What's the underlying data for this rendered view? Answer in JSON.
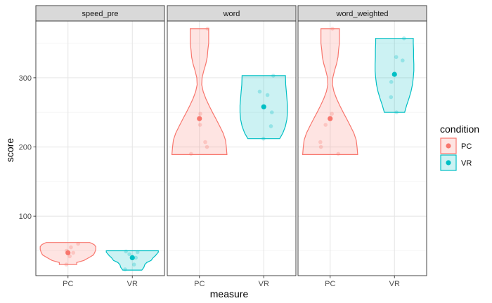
{
  "chart_data": {
    "type": "violin",
    "title": "",
    "xlabel": "measure",
    "ylabel": "score",
    "ylim": [
      14,
      382
    ],
    "yticks": [
      100,
      200,
      300
    ],
    "categories": [
      "PC",
      "VR"
    ],
    "grid": true,
    "legend": {
      "title": "condition",
      "placement": "right",
      "entries": [
        {
          "name": "PC",
          "color": "#F8766D"
        },
        {
          "name": "VR",
          "color": "#00BFC4"
        }
      ]
    },
    "facets": [
      {
        "label": "speed_pre",
        "groups": [
          {
            "condition": "PC",
            "mean": 47,
            "range": [
              30,
              62
            ],
            "profile": [
              [
                30,
                0.3
              ],
              [
                33,
                0.3
              ],
              [
                36,
                0.55
              ],
              [
                40,
                0.72
              ],
              [
                44,
                0.88
              ],
              [
                48,
                0.93
              ],
              [
                52,
                0.96
              ],
              [
                56,
                0.96
              ],
              [
                59,
                0.9
              ],
              [
                62,
                0.75
              ]
            ],
            "points": [
              [
                -0.05,
                50
              ],
              [
                0.1,
                55
              ],
              [
                0.18,
                47
              ],
              [
                0.35,
                60
              ],
              [
                0.06,
                42
              ],
              [
                -0.06,
                30
              ]
            ]
          },
          {
            "condition": "VR",
            "mean": 40,
            "range": [
              22,
              50
            ],
            "profile": [
              [
                22,
                0.33
              ],
              [
                26,
                0.4
              ],
              [
                30,
                0.43
              ],
              [
                33,
                0.5
              ],
              [
                36,
                0.65
              ],
              [
                40,
                0.72
              ],
              [
                43,
                0.8
              ],
              [
                46,
                0.86
              ],
              [
                48,
                0.9
              ],
              [
                50,
                0.9
              ]
            ],
            "points": [
              [
                -0.22,
                49
              ],
              [
                -0.25,
                23
              ],
              [
                -0.1,
                45
              ],
              [
                0.18,
                48
              ],
              [
                0.06,
                30
              ],
              [
                0.12,
                40
              ]
            ]
          }
        ]
      },
      {
        "label": "word",
        "groups": [
          {
            "condition": "PC",
            "mean": 241,
            "range": [
              189,
              371
            ],
            "profile": [
              [
                189,
                0.95
              ],
              [
                200,
                0.93
              ],
              [
                210,
                0.9
              ],
              [
                220,
                0.82
              ],
              [
                230,
                0.7
              ],
              [
                240,
                0.58
              ],
              [
                250,
                0.45
              ],
              [
                260,
                0.33
              ],
              [
                270,
                0.22
              ],
              [
                280,
                0.13
              ],
              [
                290,
                0.08
              ],
              [
                300,
                0.09
              ],
              [
                310,
                0.15
              ],
              [
                320,
                0.22
              ],
              [
                330,
                0.27
              ],
              [
                340,
                0.29
              ],
              [
                350,
                0.32
              ],
              [
                360,
                0.32
              ],
              [
                371,
                0.32
              ]
            ],
            "points": [
              [
                0.03,
                248
              ],
              [
                0.2,
                207
              ],
              [
                0.26,
                200
              ],
              [
                0.02,
                232
              ],
              [
                -0.29,
                190
              ],
              [
                0.28,
                371
              ]
            ]
          },
          {
            "condition": "VR",
            "mean": 258,
            "range": [
              212,
              303
            ],
            "profile": [
              [
                212,
                0.55
              ],
              [
                220,
                0.66
              ],
              [
                230,
                0.75
              ],
              [
                240,
                0.8
              ],
              [
                250,
                0.82
              ],
              [
                260,
                0.82
              ],
              [
                270,
                0.8
              ],
              [
                280,
                0.78
              ],
              [
                290,
                0.76
              ],
              [
                303,
                0.75
              ]
            ],
            "points": [
              [
                -0.14,
                280
              ],
              [
                0.13,
                275
              ],
              [
                0.28,
                250
              ],
              [
                0.33,
                303
              ],
              [
                0.25,
                230
              ],
              [
                -0.01,
                212
              ]
            ]
          }
        ]
      },
      {
        "label": "word_weighted",
        "groups": [
          {
            "condition": "PC",
            "mean": 241,
            "range": [
              189,
              371
            ],
            "profile": [
              [
                189,
                0.95
              ],
              [
                200,
                0.93
              ],
              [
                210,
                0.9
              ],
              [
                220,
                0.82
              ],
              [
                230,
                0.7
              ],
              [
                240,
                0.58
              ],
              [
                250,
                0.45
              ],
              [
                260,
                0.33
              ],
              [
                270,
                0.22
              ],
              [
                280,
                0.13
              ],
              [
                290,
                0.08
              ],
              [
                300,
                0.09
              ],
              [
                310,
                0.15
              ],
              [
                320,
                0.22
              ],
              [
                330,
                0.27
              ],
              [
                340,
                0.29
              ],
              [
                350,
                0.32
              ],
              [
                360,
                0.32
              ],
              [
                371,
                0.32
              ]
            ],
            "points": [
              [
                -0.34,
                207
              ],
              [
                -0.32,
                200
              ],
              [
                -0.16,
                232
              ],
              [
                0.06,
                248
              ],
              [
                0.28,
                190
              ],
              [
                0.08,
                371
              ]
            ]
          },
          {
            "condition": "VR",
            "mean": 305,
            "range": [
              250,
              357
            ],
            "profile": [
              [
                250,
                0.35
              ],
              [
                260,
                0.42
              ],
              [
                270,
                0.5
              ],
              [
                280,
                0.57
              ],
              [
                290,
                0.62
              ],
              [
                300,
                0.65
              ],
              [
                310,
                0.67
              ],
              [
                320,
                0.67
              ],
              [
                330,
                0.66
              ],
              [
                340,
                0.66
              ],
              [
                350,
                0.65
              ],
              [
                357,
                0.65
              ]
            ],
            "points": [
              [
                -0.12,
                272
              ],
              [
                -0.11,
                294
              ],
              [
                0.06,
                330
              ],
              [
                0.28,
                325
              ],
              [
                0.33,
                357
              ],
              [
                0.07,
                250
              ]
            ]
          }
        ]
      }
    ]
  }
}
